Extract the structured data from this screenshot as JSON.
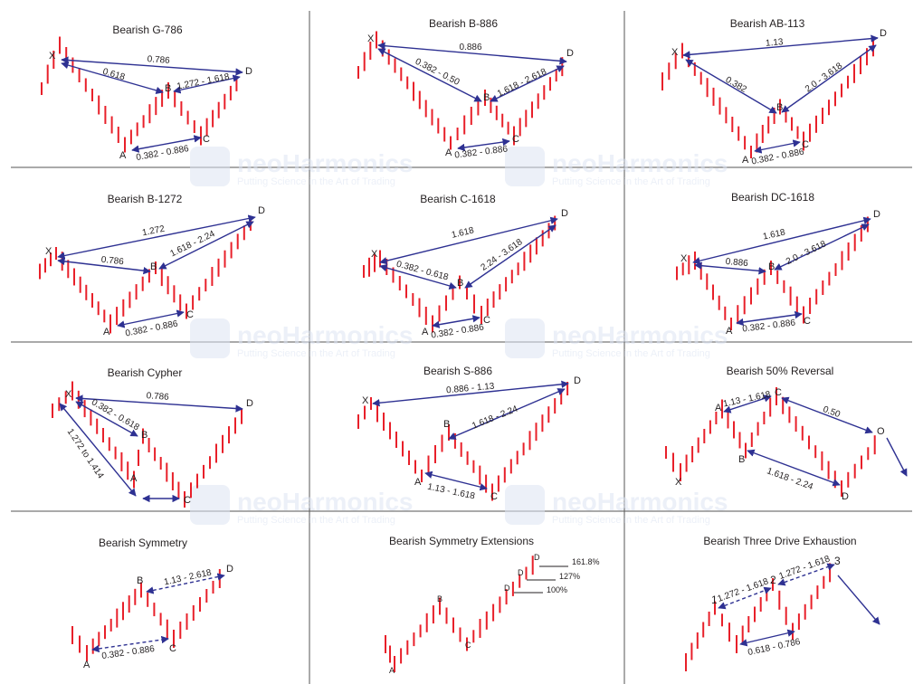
{
  "panels": [
    {
      "title": "Bearish G-786",
      "points": {
        "X": "X",
        "A": "A",
        "B": "B",
        "C": "C",
        "D": "D"
      },
      "ratios": {
        "XD": "0.786",
        "XB": "0.618",
        "BD": "1.272 - 1.618",
        "AC": "0.382 - 0.886"
      }
    },
    {
      "title": "Bearish B-886",
      "points": {
        "X": "X",
        "A": "A",
        "B": "B",
        "C": "C",
        "D": "D"
      },
      "ratios": {
        "XD": "0.886",
        "XB": "0.382 - 0.50",
        "BD": "1.618 - 2.618",
        "AC": "0.382 - 0.886"
      }
    },
    {
      "title": "Bearish AB-113",
      "points": {
        "X": "X",
        "A": "A",
        "B": "B",
        "C": "C",
        "D": "D"
      },
      "ratios": {
        "XD": "1.13",
        "XB": "0.382",
        "BD": "2.0 - 3.618",
        "AC": "0.382 - 0.886"
      }
    },
    {
      "title": "Bearish B-1272",
      "points": {
        "X": "X",
        "A": "A",
        "B": "B",
        "C": "C",
        "D": "D"
      },
      "ratios": {
        "XD": "1.272",
        "XB": "0.786",
        "BD": "1.618 - 2.24",
        "AC": "0.382 - 0.886"
      }
    },
    {
      "title": "Bearish C-1618",
      "points": {
        "X": "X",
        "A": "A",
        "B": "B",
        "C": "C",
        "D": "D"
      },
      "ratios": {
        "XD": "1.618",
        "XB": "0.382 - 0.618",
        "BD": "2.24 - 3.618",
        "AC": "0.382 - 0.886"
      }
    },
    {
      "title": "Bearish DC-1618",
      "points": {
        "X": "X",
        "A": "A",
        "B": "B",
        "C": "C",
        "D": "D"
      },
      "ratios": {
        "XD": "1.618",
        "XB": "0.886",
        "BD": "2.0 - 3.618",
        "AC": "0.382 - 0.886"
      }
    },
    {
      "title": "Bearish Cypher",
      "points": {
        "X": "X",
        "A": "A",
        "B": "B",
        "C": "C",
        "D": "D"
      },
      "ratios": {
        "XD": "0.786",
        "XB": "0.382 - 0.618",
        "XC": "1.272 to 1.414"
      }
    },
    {
      "title": "Bearish S-886",
      "points": {
        "X": "X",
        "A": "A",
        "B": "B",
        "C": "C",
        "D": "D"
      },
      "ratios": {
        "XD": "0.886 - 1.13",
        "BD": "1.618 - 2.24",
        "AC": "1.13 - 1.618"
      }
    },
    {
      "title": "Bearish 50% Reversal",
      "points": {
        "X": "X",
        "A": "A",
        "B": "B",
        "C": "C",
        "D": "D",
        "O": "O"
      },
      "ratios": {
        "AC": "1.13 - 1.618",
        "CO": "0.50",
        "BD": "1.618 - 2.24"
      }
    },
    {
      "title": "Bearish Symmetry",
      "points": {
        "A": "A",
        "B": "B",
        "C": "C",
        "D": "D"
      },
      "ratios": {
        "BD": "1.13 - 2.618",
        "AC": "0.382 - 0.886"
      }
    },
    {
      "title": "Bearish Symmetry Extensions",
      "points": {
        "A": "A",
        "B": "B",
        "C": "C",
        "D1": "D",
        "D2": "D",
        "D3": "D"
      },
      "ratios": {
        "e1": "161.8%",
        "e2": "127%",
        "e3": "100%"
      }
    },
    {
      "title": "Bearish Three Drive Exhaustion",
      "points": {
        "P1": "1",
        "P2": "2",
        "P3": "3"
      },
      "ratios": {
        "d12": "1.272 - 1.618",
        "d23": "1.272 - 1.618",
        "ret": "0.618 - 0.786"
      }
    }
  ],
  "watermark": {
    "brand": "neoHarmonics",
    "tagline": "Putting Science in the Art of Trading"
  },
  "colors": {
    "bars": "#e8202a",
    "arrows": "#2e3192",
    "text": "#231f20",
    "grid": "#555555",
    "watermark": "#dce4f2"
  }
}
